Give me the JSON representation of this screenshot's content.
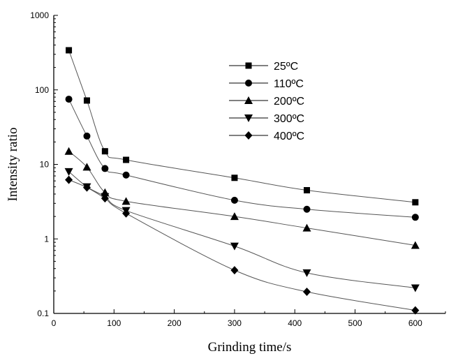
{
  "chart_data": {
    "type": "line",
    "title": "",
    "xlabel": "Grinding time/s",
    "ylabel": "Intensity ratio",
    "xlim": [
      0,
      650
    ],
    "ylim": [
      0.1,
      1000
    ],
    "yscale": "log",
    "x_ticks": [
      "0",
      "100",
      "200",
      "300",
      "400",
      "500",
      "600"
    ],
    "y_ticks": [
      "0.1",
      "1",
      "10",
      "100",
      "1000"
    ],
    "grid": false,
    "legend_position": "top-center",
    "x": [
      25,
      55,
      85,
      120,
      300,
      420,
      600
    ],
    "series": [
      {
        "name": "25ºC",
        "marker": "square",
        "values": [
          340,
          72,
          15,
          11.5,
          6.6,
          4.5,
          3.1
        ]
      },
      {
        "name": "110ºC",
        "marker": "circle",
        "values": [
          75,
          24,
          8.8,
          7.2,
          3.3,
          2.5,
          1.95
        ]
      },
      {
        "name": "200ºC",
        "marker": "triangle-up",
        "values": [
          15,
          9.2,
          4.2,
          3.2,
          2.0,
          1.4,
          0.82
        ]
      },
      {
        "name": "300ºC",
        "marker": "triangle-down",
        "values": [
          8.0,
          5.0,
          3.7,
          2.4,
          0.8,
          0.35,
          0.22
        ]
      },
      {
        "name": "400ºC",
        "marker": "diamond",
        "values": [
          6.2,
          4.9,
          3.5,
          2.2,
          0.38,
          0.195,
          0.11
        ]
      }
    ]
  }
}
